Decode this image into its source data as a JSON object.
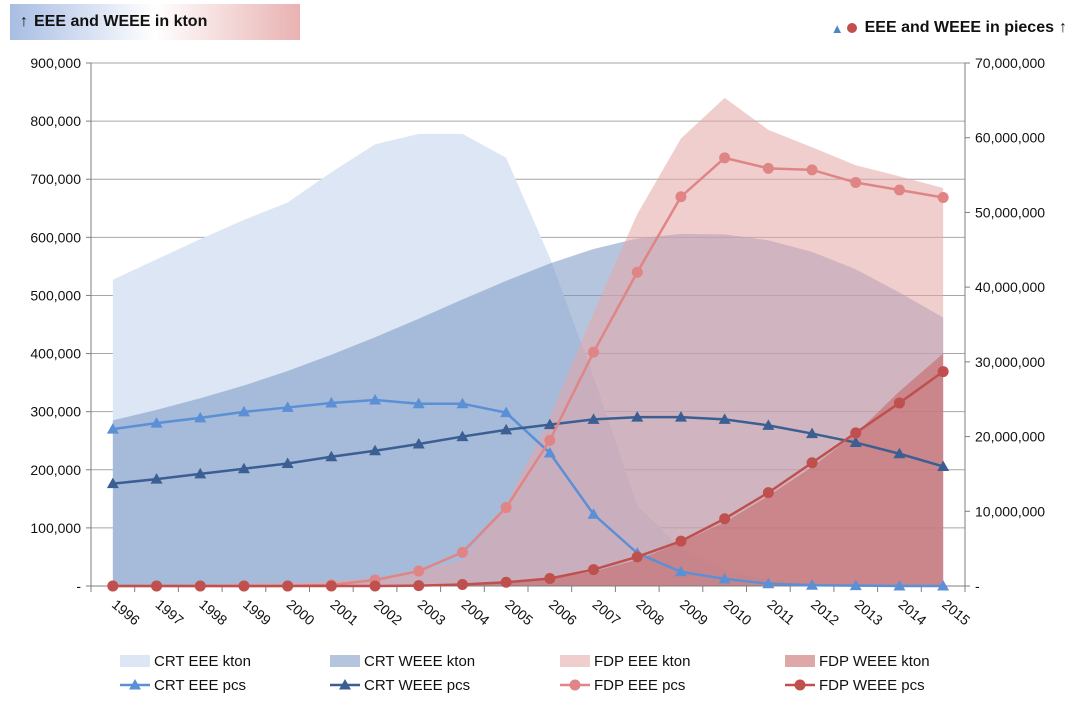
{
  "header": {
    "left_arrow": "↑",
    "left_title": "EEE and WEEE in kton",
    "right_marker_triangle": "▲",
    "right_title": "EEE and WEEE in pieces",
    "right_arrow": "↑"
  },
  "chart_data": {
    "type": "area+line",
    "categories": [
      "1996",
      "1997",
      "1998",
      "1999",
      "2000",
      "2001",
      "2002",
      "2003",
      "2004",
      "2005",
      "2006",
      "2007",
      "2008",
      "2009",
      "2010",
      "2011",
      "2012",
      "2013",
      "2014",
      "2015"
    ],
    "y_left": {
      "label": "EEE and WEEE in kton",
      "range": [
        0,
        900000
      ],
      "ticks": [
        0,
        100000,
        200000,
        300000,
        400000,
        500000,
        600000,
        700000,
        800000,
        900000
      ],
      "tick_labels": [
        "-",
        "100,000",
        "200,000",
        "300,000",
        "400,000",
        "500,000",
        "600,000",
        "700,000",
        "800,000",
        "900,000"
      ]
    },
    "y_right": {
      "label": "EEE and WEEE in pieces",
      "range": [
        0,
        70000000
      ],
      "ticks": [
        0,
        10000000,
        20000000,
        30000000,
        40000000,
        50000000,
        60000000,
        70000000
      ],
      "tick_labels": [
        "-",
        "10,000,000",
        "20,000,000",
        "30,000,000",
        "40,000,000",
        "50,000,000",
        "60,000,000",
        "70,000,000"
      ]
    },
    "grid": true,
    "legend_position": "bottom",
    "area_series": [
      {
        "name": "CRT EEE kton",
        "axis": "left",
        "color": "#dce6f4",
        "values": [
          527000,
          562000,
          597000,
          630000,
          660000,
          712000,
          760000,
          778000,
          778000,
          737000,
          565000,
          360000,
          138000,
          65000,
          28000,
          10000,
          4000,
          2000,
          1000,
          0
        ]
      },
      {
        "name": "CRT WEEE kton",
        "axis": "left",
        "color": "#7a96c3",
        "opacity": 0.55,
        "values": [
          285000,
          303000,
          323000,
          345000,
          370000,
          398000,
          428000,
          460000,
          493000,
          525000,
          555000,
          580000,
          598000,
          606000,
          605000,
          595000,
          575000,
          545000,
          505000,
          462000
        ]
      },
      {
        "name": "FDP EEE kton",
        "axis": "left",
        "color": "#e6a5a5",
        "opacity": 0.55,
        "values": [
          0,
          2000,
          3000,
          4000,
          6000,
          8000,
          14000,
          25000,
          45000,
          140000,
          290000,
          470000,
          640000,
          770000,
          840000,
          785000,
          755000,
          724000,
          705000,
          685000
        ]
      },
      {
        "name": "FDP WEEE kton",
        "axis": "left",
        "color": "#c46060",
        "opacity": 0.55,
        "values": [
          0,
          0,
          0,
          0,
          0,
          0,
          0,
          1000,
          2000,
          5000,
          12000,
          25000,
          45000,
          75000,
          110000,
          155000,
          205000,
          262000,
          335000,
          400000
        ]
      }
    ],
    "line_series": [
      {
        "name": "CRT EEE pcs",
        "axis": "right",
        "color": "#5b8fd6",
        "marker": "triangle",
        "values": [
          21000000,
          21800000,
          22500000,
          23300000,
          23900000,
          24500000,
          24900000,
          24400000,
          24400000,
          23200000,
          17800000,
          9600000,
          4400000,
          1900000,
          950000,
          300000,
          100000,
          50000,
          0,
          0
        ]
      },
      {
        "name": "CRT WEEE pcs",
        "axis": "right",
        "color": "#3b5f92",
        "marker": "triangle",
        "values": [
          13700000,
          14300000,
          15000000,
          15700000,
          16400000,
          17300000,
          18100000,
          19000000,
          20000000,
          20900000,
          21600000,
          22300000,
          22600000,
          22600000,
          22300000,
          21500000,
          20400000,
          19200000,
          17700000,
          16000000
        ]
      },
      {
        "name": "FDP EEE pcs",
        "axis": "right",
        "color": "#e08585",
        "marker": "circle",
        "values": [
          0,
          0,
          0,
          0,
          0,
          150000,
          800000,
          2000000,
          4500000,
          10500000,
          19500000,
          31300000,
          42000000,
          52100000,
          57300000,
          55900000,
          55700000,
          54000000,
          53000000,
          52000000
        ]
      },
      {
        "name": "FDP WEEE pcs",
        "axis": "right",
        "color": "#c0504d",
        "marker": "circle",
        "values": [
          0,
          0,
          0,
          0,
          0,
          0,
          0,
          50000,
          200000,
          500000,
          1000000,
          2200000,
          3900000,
          6000000,
          9000000,
          12500000,
          16500000,
          20500000,
          24500000,
          28700000
        ]
      }
    ],
    "legend": [
      "CRT EEE kton",
      "CRT WEEE kton",
      "FDP EEE kton",
      "FDP WEEE kton",
      "CRT EEE pcs",
      "CRT WEEE pcs",
      "FDP EEE pcs",
      "FDP WEEE pcs"
    ]
  }
}
